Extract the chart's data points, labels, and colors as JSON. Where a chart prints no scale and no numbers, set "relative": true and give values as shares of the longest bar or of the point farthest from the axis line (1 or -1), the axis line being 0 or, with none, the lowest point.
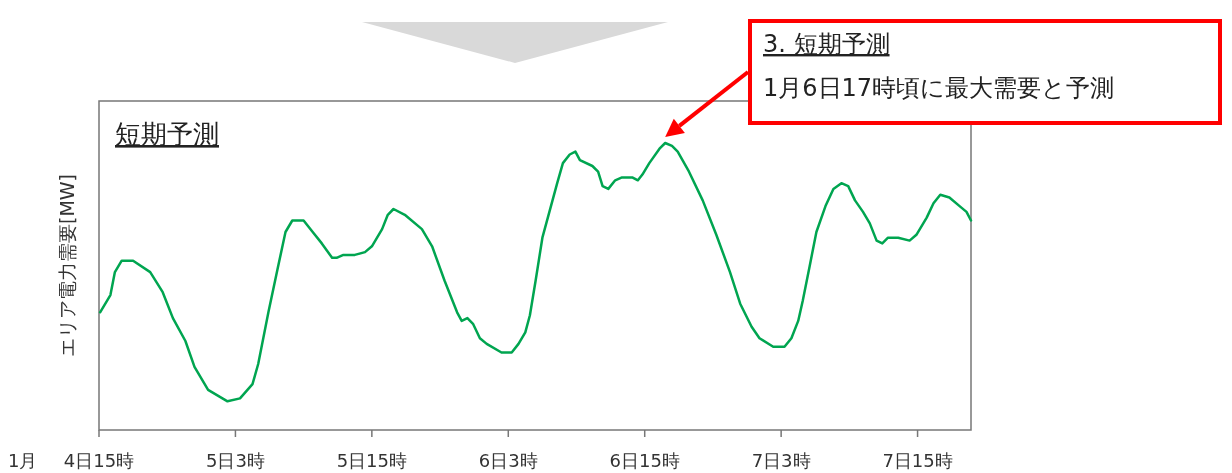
{
  "chart_data": {
    "type": "line",
    "title": "短期予測",
    "ylabel": "エリア電力需要[MW]",
    "relative": true,
    "x": [
      "--01-04T15:06",
      "--01-04T16:00",
      "--01-04T16:24",
      "--01-04T17:00",
      "--01-04T18:00",
      "--01-04T19:30",
      "--01-04T20:36",
      "--01-04T21:30",
      "--01-04T22:36",
      "--01-04T23:24",
      "--01-05T00:36",
      "--01-05T02:18",
      "--01-05T03:24",
      "--01-05T04:30",
      "--01-05T05:00",
      "--01-05T05:54",
      "--01-05T06:42",
      "--01-05T07:24",
      "--01-05T08:00",
      "--01-05T09:00",
      "--01-05T09:48",
      "--01-05T10:36",
      "--01-05T11:30",
      "--01-05T11:54",
      "--01-05T12:30",
      "--01-05T13:30",
      "--01-05T14:24",
      "--01-05T15:00",
      "--01-05T15:54",
      "--01-05T16:24",
      "--01-05T16:54",
      "--01-05T17:54",
      "--01-05T19:24",
      "--01-05T20:18",
      "--01-05T21:24",
      "--01-05T22:30",
      "--01-05T22:54",
      "--01-05T23:24",
      "--01-05T23:54",
      "--01-06T00:30",
      "--01-06T01:06",
      "--01-06T02:24",
      "--01-06T03:18",
      "--01-06T03:54",
      "--01-06T04:30",
      "--01-06T04:54",
      "--01-06T05:24",
      "--01-06T06:00",
      "--01-06T07:18",
      "--01-06T07:48",
      "--01-06T08:24",
      "--01-06T08:54",
      "--01-06T09:18",
      "--01-06T10:24",
      "--01-06T10:54",
      "--01-06T11:18",
      "--01-06T11:48",
      "--01-06T12:24",
      "--01-06T13:00",
      "--01-06T13:54",
      "--01-06T14:24",
      "--01-06T14:48",
      "--01-06T15:24",
      "--01-06T16:18",
      "--01-06T16:48",
      "--01-06T17:24",
      "--01-06T17:54",
      "--01-06T18:54",
      "--01-06T20:06",
      "--01-06T21:18",
      "--01-06T22:30",
      "--01-06T23:24",
      "--01-07T00:24",
      "--01-07T01:06",
      "--01-07T02:18",
      "--01-07T03:18",
      "--01-07T03:54",
      "--01-07T04:30",
      "--01-07T04:54",
      "--01-07T05:30",
      "--01-07T06:06",
      "--01-07T06:54",
      "--01-07T07:36",
      "--01-07T08:18",
      "--01-07T08:54",
      "--01-07T09:30",
      "--01-07T10:12",
      "--01-07T10:48",
      "--01-07T11:24",
      "--01-07T11:54",
      "--01-07T12:24",
      "--01-07T13:18",
      "--01-07T14:18",
      "--01-07T14:54",
      "--01-07T15:48",
      "--01-07T16:24",
      "--01-07T17:00",
      "--01-07T17:48",
      "--01-07T18:42",
      "--01-07T19:18",
      "--01-07T19:42"
    ],
    "series": [
      {
        "color": "#00a550",
        "values": [
          0.41,
          0.47,
          0.55,
          0.59,
          0.59,
          0.55,
          0.48,
          0.39,
          0.31,
          0.22,
          0.14,
          0.1,
          0.11,
          0.16,
          0.23,
          0.41,
          0.56,
          0.69,
          0.73,
          0.73,
          0.69,
          0.65,
          0.6,
          0.6,
          0.61,
          0.61,
          0.62,
          0.64,
          0.7,
          0.75,
          0.77,
          0.75,
          0.7,
          0.64,
          0.52,
          0.41,
          0.38,
          0.39,
          0.37,
          0.32,
          0.3,
          0.27,
          0.27,
          0.3,
          0.34,
          0.4,
          0.52,
          0.67,
          0.86,
          0.93,
          0.96,
          0.97,
          0.94,
          0.92,
          0.9,
          0.85,
          0.84,
          0.87,
          0.88,
          0.88,
          0.87,
          0.89,
          0.93,
          0.98,
          1.0,
          0.99,
          0.97,
          0.9,
          0.8,
          0.68,
          0.55,
          0.44,
          0.36,
          0.32,
          0.29,
          0.29,
          0.32,
          0.38,
          0.45,
          0.57,
          0.69,
          0.78,
          0.84,
          0.86,
          0.85,
          0.8,
          0.76,
          0.72,
          0.66,
          0.65,
          0.67,
          0.67,
          0.66,
          0.68,
          0.74,
          0.79,
          0.82,
          0.81,
          0.78,
          0.76,
          0.73
        ]
      }
    ],
    "xlim": [
      "--01-04T15:00",
      "--01-07T19:42"
    ],
    "xticks": [
      {
        "value": "--01-04T15:00",
        "label": "4日15時"
      },
      {
        "value": "--01-05T03:00",
        "label": "5日3時"
      },
      {
        "value": "--01-05T15:00",
        "label": "5日15時"
      },
      {
        "value": "--01-06T03:00",
        "label": "6日3時"
      },
      {
        "value": "--01-06T15:00",
        "label": "6日15時"
      },
      {
        "value": "--01-07T03:00",
        "label": "7日3時"
      },
      {
        "value": "--01-07T15:00",
        "label": "7日15時"
      }
    ],
    "tick_labels": "x",
    "annotations": [
      "1月",
      "3. 短期予測\n1月6日17時頃に最大需要と予測"
    ]
  }
}
